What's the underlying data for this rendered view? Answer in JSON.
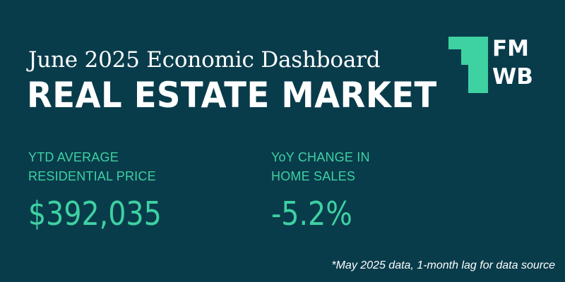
{
  "header": {
    "subtitle": "June 2025 Economic Dashboard",
    "title": "REAL ESTATE MARKET"
  },
  "logo": {
    "line1": "FM",
    "line2": "WB",
    "icon": "logo-mark-icon",
    "accent_color": "#3ed1a2"
  },
  "stats": [
    {
      "label_line1": "YTD AVERAGE",
      "label_line2": "RESIDENTIAL PRICE",
      "value": "$392,035"
    },
    {
      "label_line1": "YoY CHANGE IN",
      "label_line2": "HOME SALES",
      "value": "-5.2%"
    }
  ],
  "footnote": "*May 2025 data, 1-month lag for data source",
  "colors": {
    "background": "#093c4b",
    "accent": "#3ed1a2",
    "text": "#ffffff"
  }
}
